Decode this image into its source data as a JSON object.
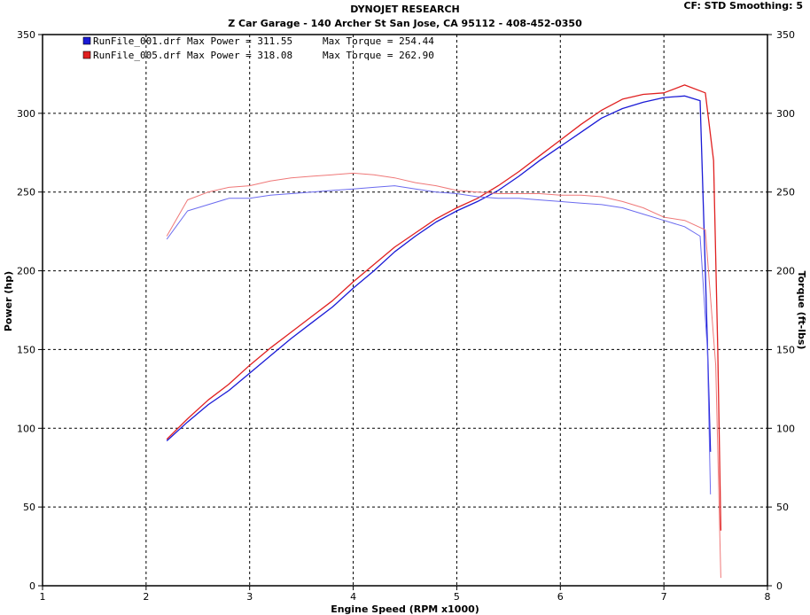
{
  "header": {
    "title": "DYNOJET RESEARCH",
    "subtitle": "Z Car Garage - 140 Archer St San Jose, CA 95112 - 408-452-0350",
    "settings": "CF: STD  Smoothing: 5"
  },
  "legend": [
    {
      "label": "RunFile_001.drf Max Power = 311.55",
      "torque": "Max Torque = 254.44",
      "color": "#1a1ad6"
    },
    {
      "label": "RunFile_005.drf Max Power = 318.08",
      "torque": "Max Torque = 262.90",
      "color": "#e02020"
    }
  ],
  "chart_data": {
    "type": "line",
    "title": "DYNOJET RESEARCH",
    "subtitle": "Z Car Garage - 140 Archer St San Jose, CA 95112 - 408-452-0350",
    "xlabel": "Engine Speed (RPM x1000)",
    "ylabel": "Power (hp)",
    "y2label": "Torque (ft-lbs)",
    "xlim": [
      1,
      8
    ],
    "ylim": [
      0,
      350
    ],
    "y2lim": [
      0,
      350
    ],
    "x_ticks": [
      "1",
      "2",
      "3",
      "4",
      "5",
      "6",
      "7",
      "8"
    ],
    "y_ticks": [
      "0",
      "50",
      "100",
      "150",
      "200",
      "250",
      "300",
      "350"
    ],
    "grid": true,
    "legend_position": "top-left",
    "series": [
      {
        "name": "RunFile_001.drf",
        "metric": "Power",
        "color": "#1a1ad6",
        "opacity": 1,
        "x": [
          2.2,
          2.4,
          2.6,
          2.8,
          3.0,
          3.2,
          3.4,
          3.6,
          3.8,
          4.0,
          4.2,
          4.4,
          4.6,
          4.8,
          5.0,
          5.2,
          5.4,
          5.6,
          5.8,
          6.0,
          6.2,
          6.4,
          6.6,
          6.8,
          7.0,
          7.2,
          7.35,
          7.4,
          7.45
        ],
        "y": [
          92,
          104,
          115,
          124,
          135,
          146,
          157,
          167,
          177,
          189,
          200,
          212,
          222,
          231,
          238,
          244,
          251,
          260,
          270,
          279,
          288,
          297,
          303,
          307,
          310,
          311,
          308,
          200,
          85
        ]
      },
      {
        "name": "RunFile_005.drf",
        "metric": "Power",
        "color": "#e02020",
        "opacity": 1,
        "x": [
          2.2,
          2.4,
          2.6,
          2.8,
          3.0,
          3.2,
          3.4,
          3.6,
          3.8,
          4.0,
          4.2,
          4.4,
          4.6,
          4.8,
          5.0,
          5.2,
          5.4,
          5.6,
          5.8,
          6.0,
          6.2,
          6.4,
          6.6,
          6.8,
          7.0,
          7.2,
          7.4,
          7.48,
          7.52,
          7.55
        ],
        "y": [
          93,
          106,
          118,
          128,
          140,
          151,
          161,
          171,
          181,
          193,
          204,
          215,
          224,
          233,
          240,
          246,
          254,
          263,
          273,
          283,
          293,
          302,
          309,
          312,
          313,
          318,
          313,
          270,
          150,
          35
        ]
      },
      {
        "name": "RunFile_001.drf",
        "metric": "Torque",
        "color": "#6b6bef",
        "opacity": 1,
        "x": [
          2.2,
          2.4,
          2.6,
          2.8,
          3.0,
          3.2,
          3.4,
          3.6,
          3.8,
          4.0,
          4.2,
          4.4,
          4.6,
          4.8,
          5.0,
          5.2,
          5.4,
          5.6,
          5.8,
          6.0,
          6.2,
          6.4,
          6.6,
          6.8,
          7.0,
          7.2,
          7.35,
          7.42,
          7.45
        ],
        "y": [
          220,
          238,
          242,
          246,
          246,
          248,
          249,
          250,
          251,
          252,
          253,
          254,
          252,
          250,
          249,
          247,
          246,
          246,
          245,
          244,
          243,
          242,
          240,
          236,
          232,
          228,
          222,
          150,
          58
        ]
      },
      {
        "name": "RunFile_005.drf",
        "metric": "Torque",
        "color": "#ef7878",
        "opacity": 1,
        "x": [
          2.2,
          2.4,
          2.6,
          2.8,
          3.0,
          3.2,
          3.4,
          3.6,
          3.8,
          4.0,
          4.2,
          4.4,
          4.6,
          4.8,
          5.0,
          5.2,
          5.4,
          5.6,
          5.8,
          6.0,
          6.2,
          6.4,
          6.6,
          6.8,
          7.0,
          7.2,
          7.4,
          7.5,
          7.55
        ],
        "y": [
          222,
          245,
          250,
          253,
          254,
          257,
          259,
          260,
          261,
          262,
          261,
          259,
          256,
          254,
          251,
          250,
          249,
          249,
          249,
          248,
          248,
          247,
          244,
          240,
          234,
          232,
          226,
          140,
          5
        ]
      }
    ]
  }
}
